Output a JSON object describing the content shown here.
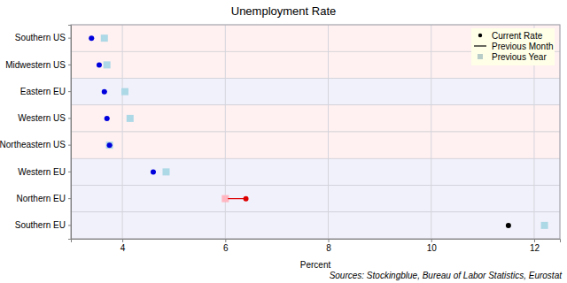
{
  "chart_data": {
    "type": "dot",
    "orientation": "horizontal",
    "title": "Unemployment Rate",
    "x_label": "Percent",
    "annotation": "Sources: Stockingblue, Bureau of Labor Statistics, Eurostat",
    "categories": [
      "Southern US",
      "Midwestern US",
      "Eastern EU",
      "Western US",
      "Northeastern US",
      "Western EU",
      "Northern EU",
      "Southern EU"
    ],
    "series": [
      {
        "name": "Current Rate",
        "marker": "circle",
        "values": [
          3.4,
          3.55,
          3.65,
          3.7,
          3.75,
          4.6,
          6.4,
          11.5
        ],
        "colors": [
          "#0000dd",
          "#0000dd",
          "#0000dd",
          "#0000dd",
          "#0000dd",
          "#0000dd",
          "#dd0000",
          "#000000"
        ]
      },
      {
        "name": "Previous Month",
        "line_style": "solid",
        "values": [
          3.45,
          3.6,
          3.7,
          3.75,
          3.8,
          4.65,
          6.05,
          11.5
        ],
        "colors": [
          "#0000dd",
          "#0000dd",
          "#0000dd",
          "#0000dd",
          "#0000dd",
          "#0000dd",
          "#dd0000",
          "#000000"
        ]
      },
      {
        "name": "Previous Year",
        "marker": "square",
        "values": [
          3.65,
          3.7,
          4.05,
          4.15,
          3.75,
          4.85,
          6.0,
          12.2
        ],
        "colors": [
          "#add8e6",
          "#add8e6",
          "#add8e6",
          "#add8e6",
          "#add8e6",
          "#add8e6",
          "#ffb6c1",
          "#add8e6"
        ]
      }
    ],
    "xlim": [
      3,
      12.5
    ],
    "xticks": [
      4,
      6,
      8,
      10,
      12
    ],
    "grid": true,
    "legend": "upper right"
  }
}
